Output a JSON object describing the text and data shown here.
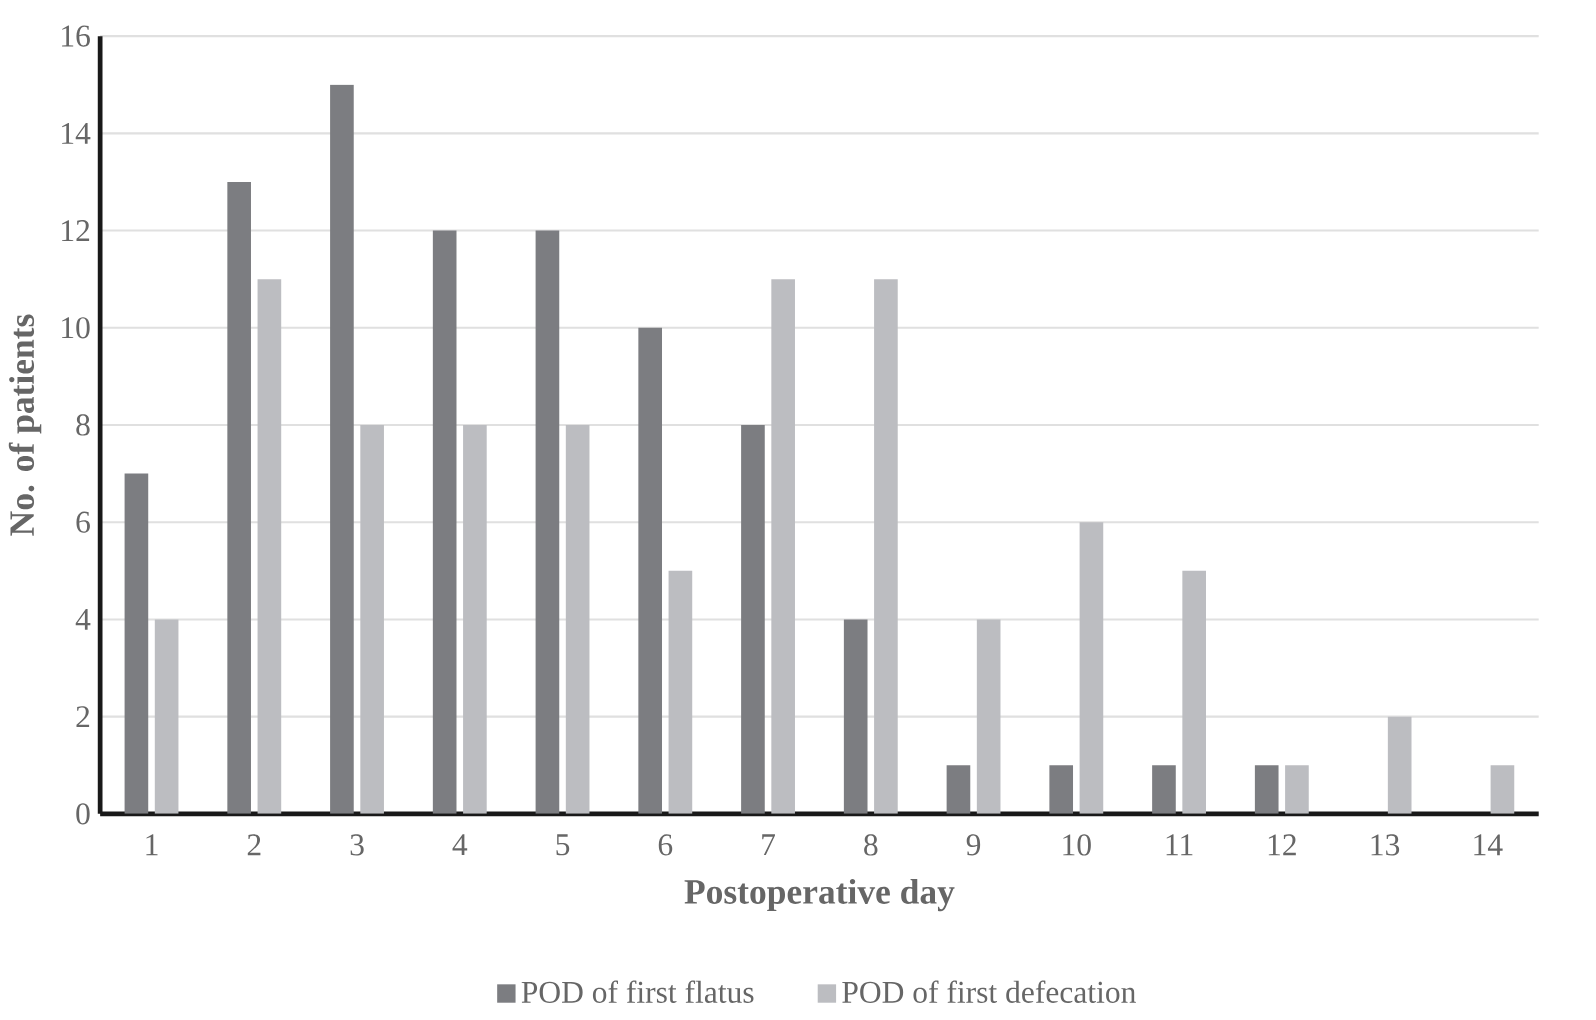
{
  "chart_data": {
    "type": "bar",
    "xlabel": "Postoperative day",
    "ylabel": "No. of patients",
    "categories": [
      "1",
      "2",
      "3",
      "4",
      "5",
      "6",
      "7",
      "8",
      "9",
      "10",
      "11",
      "12",
      "13",
      "14"
    ],
    "series": [
      {
        "name": "POD of first flatus",
        "color": "#7c7d81",
        "values": [
          7,
          13,
          15,
          12,
          12,
          10,
          8,
          4,
          1,
          1,
          1,
          1,
          0,
          0
        ]
      },
      {
        "name": "POD of first defecation",
        "color": "#bcbdc1",
        "values": [
          4,
          11,
          8,
          8,
          8,
          5,
          11,
          11,
          4,
          6,
          5,
          1,
          2,
          1
        ]
      }
    ],
    "ylim": [
      0,
      16
    ],
    "yticks": [
      0,
      2,
      4,
      6,
      8,
      10,
      12,
      14,
      16
    ],
    "grid": "y",
    "legend": "bottom"
  }
}
